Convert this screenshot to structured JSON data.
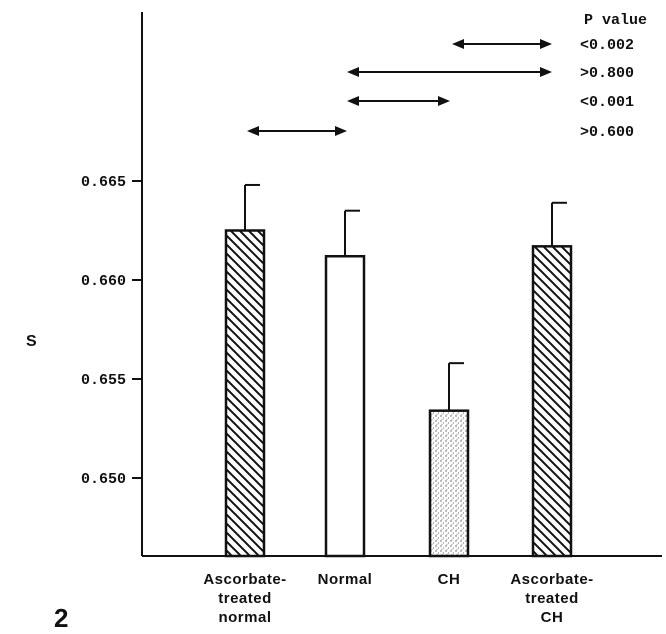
{
  "figure_number": "2",
  "chart_data": {
    "type": "bar",
    "ylabel": "S",
    "xlabel": "",
    "title": "",
    "ylim": [
      0.6455,
      0.6835
    ],
    "yticks": [
      "0.650",
      "0.655",
      "0.660",
      "0.665"
    ],
    "ytick_values": [
      0.65,
      0.655,
      0.66,
      0.665
    ],
    "categories": [
      [
        "Ascorbate-",
        "treated",
        "normal"
      ],
      [
        "Normal"
      ],
      [
        "CH"
      ],
      [
        "Ascorbate-",
        "treated",
        "CH"
      ]
    ],
    "values": [
      0.6625,
      0.6612,
      0.6534,
      0.6617
    ],
    "errors": [
      0.0023,
      0.0023,
      0.0024,
      0.0022
    ],
    "bar_patterns": [
      "hatch",
      "plain",
      "stipple",
      "hatch"
    ],
    "p_value_header": "P value",
    "comparisons": [
      {
        "from": 2,
        "to": 3,
        "p": "<0.002"
      },
      {
        "from": 1,
        "to": 3,
        "p": ">0.800"
      },
      {
        "from": 1,
        "to": 2,
        "p": "<0.001"
      },
      {
        "from": 0,
        "to": 1,
        "p": ">0.600"
      }
    ]
  }
}
